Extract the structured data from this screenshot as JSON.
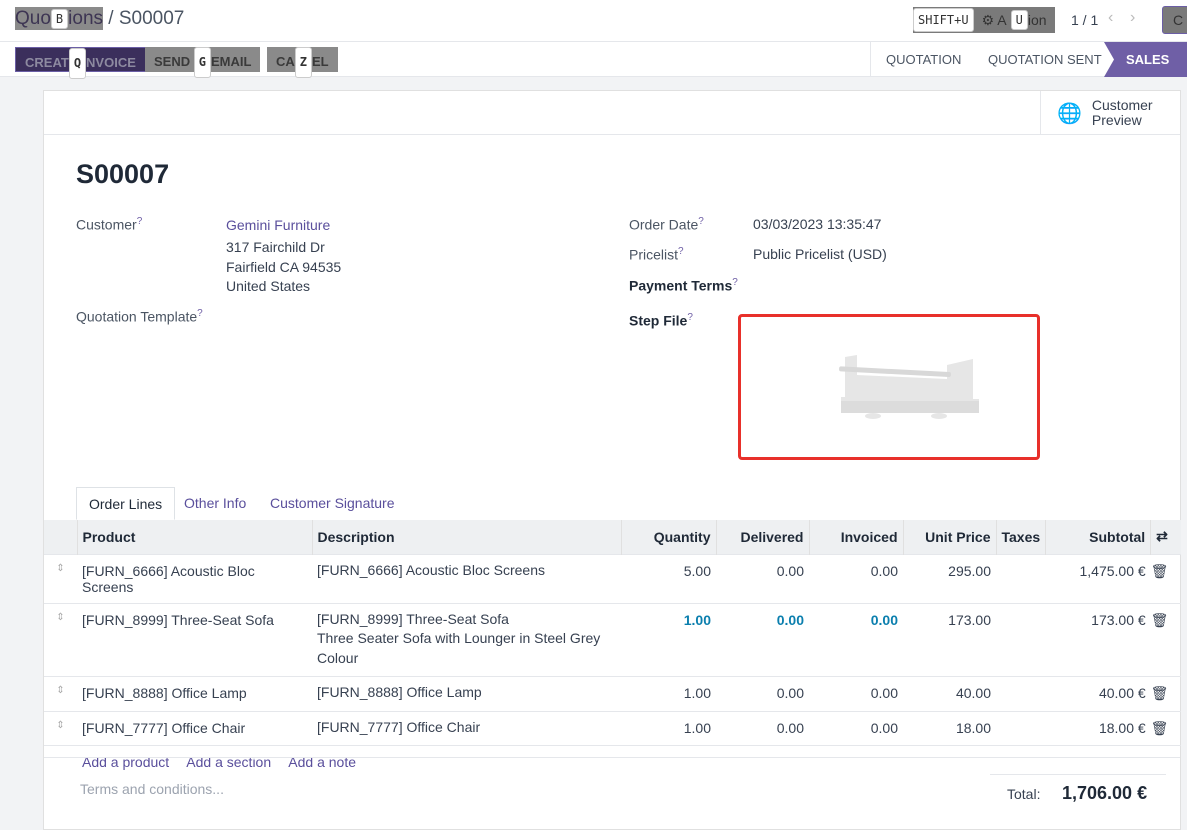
{
  "breadcrumb": {
    "parent": "Quotations",
    "parent_shown_a": "Quo",
    "parent_shown_b": "ions",
    "current": "S00007",
    "shortcut": "B"
  },
  "pager": {
    "text": "1 / 1"
  },
  "action": {
    "shortcut_hint": "SHIFT+U",
    "label_a": "⚙ A",
    "label_b": "ion",
    "shortcut": "U"
  },
  "new_button": {
    "label": "C"
  },
  "buttons": [
    {
      "label_a": "CREAT",
      "label_b": "NVOICE",
      "shortcut": "Q"
    },
    {
      "label_a": "SEND ",
      "label_b": "EMAIL",
      "shortcut": "G"
    },
    {
      "label_a": "CA",
      "label_b": "EL",
      "shortcut": "Z"
    }
  ],
  "statusbar": [
    "QUOTATION",
    "QUOTATION SENT",
    "SALES ORDER"
  ],
  "preview": {
    "label": "Customer Preview"
  },
  "record": {
    "name": "S00007",
    "customer_label": "Customer",
    "customer": "Gemini Furniture",
    "address": [
      "317 Fairchild Dr",
      "Fairfield CA 94535",
      "United States"
    ],
    "template_label": "Quotation Template",
    "order_date_label": "Order Date",
    "order_date": "03/03/2023 13:35:47",
    "pricelist_label": "Pricelist",
    "pricelist": "Public Pricelist (USD)",
    "payment_terms_label": "Payment Terms",
    "step_file_label": "Step File"
  },
  "tabs": [
    "Order Lines",
    "Other Info",
    "Customer Signature"
  ],
  "columns": [
    "Product",
    "Description",
    "Quantity",
    "Delivered",
    "Invoiced",
    "Unit Price",
    "Taxes",
    "Subtotal"
  ],
  "lines": [
    {
      "product": "[FURN_6666] Acoustic Bloc Screens",
      "description": [
        "[FURN_6666] Acoustic Bloc Screens"
      ],
      "qty": "5.00",
      "delivered": "0.00",
      "invoiced": "0.00",
      "price": "295.00",
      "taxes": "",
      "subtotal": "1,475.00 €"
    },
    {
      "product": "[FURN_8999] Three-Seat Sofa",
      "description": [
        "[FURN_8999] Three-Seat Sofa",
        "Three Seater Sofa with Lounger in Steel Grey",
        "Colour"
      ],
      "qty": "1.00",
      "delivered": "0.00",
      "invoiced": "0.00",
      "price": "173.00",
      "taxes": "",
      "subtotal": "173.00 €",
      "highlight": true
    },
    {
      "product": "[FURN_8888] Office Lamp",
      "description": [
        "[FURN_8888] Office Lamp"
      ],
      "qty": "1.00",
      "delivered": "0.00",
      "invoiced": "0.00",
      "price": "40.00",
      "taxes": "",
      "subtotal": "40.00 €"
    },
    {
      "product": "[FURN_7777] Office Chair",
      "description": [
        "[FURN_7777] Office Chair"
      ],
      "qty": "1.00",
      "delivered": "0.00",
      "invoiced": "0.00",
      "price": "18.00",
      "taxes": "",
      "subtotal": "18.00 €"
    }
  ],
  "add_links": [
    "Add a product",
    "Add a section",
    "Add a note"
  ],
  "terms_placeholder": "Terms and conditions...",
  "total": {
    "label": "Total:",
    "value": "1,706.00 €"
  },
  "colors": {
    "accent": "#6f5fa6",
    "highlight": "#0b7fae",
    "step_border": "#e8302a"
  }
}
